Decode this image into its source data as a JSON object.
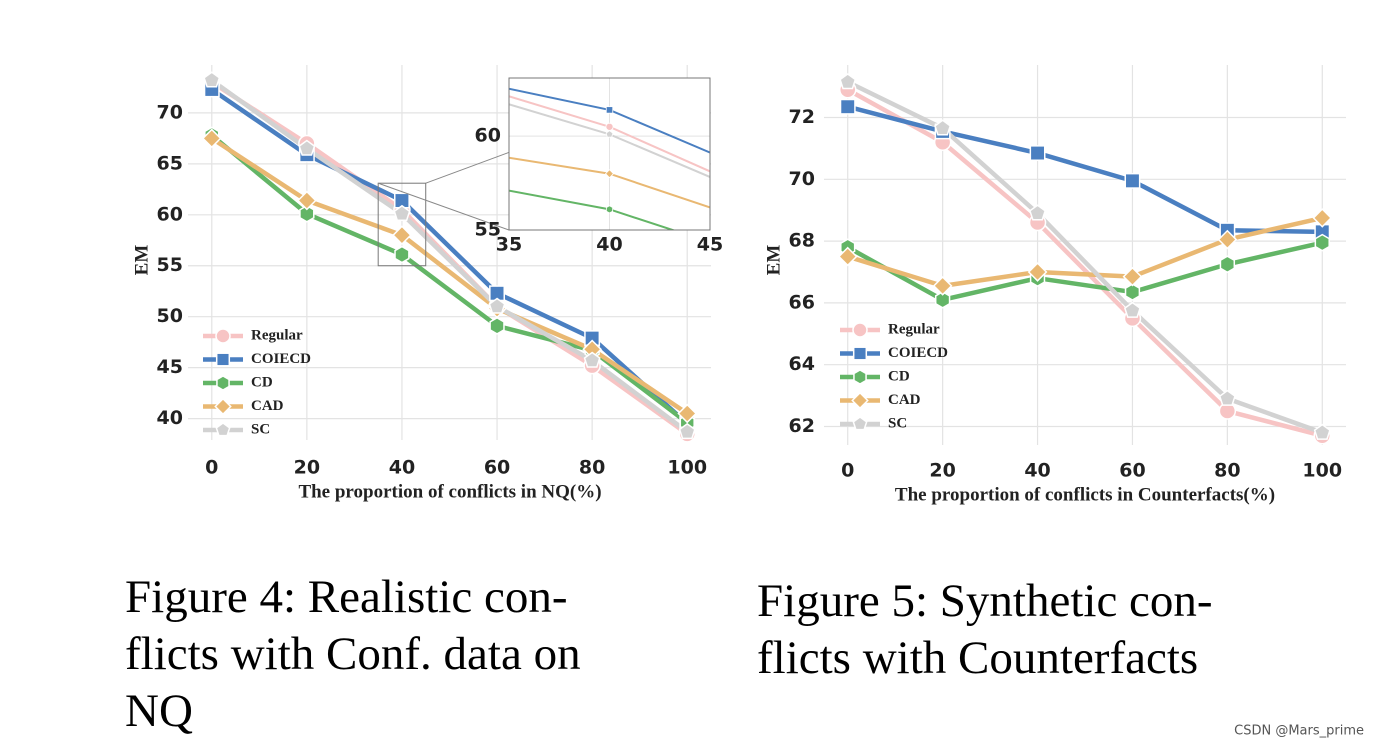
{
  "chart_data": [
    {
      "type": "line",
      "caption": [
        "Figure 4:  Realistic con-",
        "flicts with Conf. data on",
        "NQ"
      ],
      "x_label": "The proportion of conflicts in NQ(%)",
      "y_label": "EM",
      "x": [
        0,
        20,
        40,
        60,
        80,
        100
      ],
      "xlim": [
        -5,
        105
      ],
      "ylim": [
        37.9,
        74.7
      ],
      "xticks": [
        0,
        20,
        40,
        60,
        80,
        100
      ],
      "yticks": [
        40,
        45,
        50,
        55,
        60,
        65,
        70
      ],
      "grid": true,
      "legend": "lower left",
      "series": [
        {
          "name": "Regular",
          "color": "#f7c4c4",
          "marker": "circle",
          "values": [
            73.0,
            67.0,
            60.5,
            51.0,
            45.2,
            38.5
          ]
        },
        {
          "name": "COIECD",
          "color": "#4a7fc1",
          "marker": "square",
          "values": [
            72.3,
            65.9,
            61.4,
            52.3,
            47.9,
            39.5
          ]
        },
        {
          "name": "CD",
          "color": "#63b566",
          "marker": "hexagon",
          "values": [
            67.8,
            60.1,
            56.1,
            49.1,
            46.7,
            39.6
          ]
        },
        {
          "name": "CAD",
          "color": "#e9b872",
          "marker": "diamond",
          "values": [
            67.5,
            61.4,
            58.0,
            50.8,
            46.8,
            40.5
          ]
        },
        {
          "name": "SC",
          "color": "#d2d2d2",
          "marker": "pentagon",
          "values": [
            73.2,
            66.5,
            60.1,
            51.0,
            45.7,
            38.7
          ]
        }
      ],
      "inset": {
        "xlim": [
          35,
          45
        ],
        "ylim": [
          55,
          63.1
        ],
        "xticks": [
          35,
          40,
          45
        ],
        "yticks": [
          55,
          60
        ]
      }
    },
    {
      "type": "line",
      "caption": [
        "Figure 5:  Synthetic con-",
        "flicts with Counterfacts"
      ],
      "x_label": "The proportion of conflicts in Counterfacts(%)",
      "y_label": "EM",
      "x": [
        0,
        20,
        40,
        60,
        80,
        100
      ],
      "xlim": [
        -5,
        105
      ],
      "ylim": [
        61.4,
        73.7
      ],
      "xticks": [
        0,
        20,
        40,
        60,
        80,
        100
      ],
      "yticks": [
        62,
        64,
        66,
        68,
        70,
        72
      ],
      "grid": true,
      "legend": "lower left",
      "series": [
        {
          "name": "Regular",
          "color": "#f7c4c4",
          "marker": "circle",
          "values": [
            72.9,
            71.2,
            68.6,
            65.5,
            62.5,
            61.7
          ]
        },
        {
          "name": "COIECD",
          "color": "#4a7fc1",
          "marker": "square",
          "values": [
            72.35,
            71.55,
            70.85,
            69.95,
            68.35,
            68.3
          ]
        },
        {
          "name": "CD",
          "color": "#63b566",
          "marker": "hexagon",
          "values": [
            67.8,
            66.1,
            66.8,
            66.35,
            67.25,
            67.95
          ]
        },
        {
          "name": "CAD",
          "color": "#e9b872",
          "marker": "diamond",
          "values": [
            67.5,
            66.55,
            67.0,
            66.85,
            68.05,
            68.75
          ]
        },
        {
          "name": "SC",
          "color": "#d2d2d2",
          "marker": "pentagon",
          "values": [
            73.15,
            71.65,
            68.9,
            65.75,
            62.9,
            61.8
          ]
        }
      ]
    }
  ],
  "watermark": "CSDN @Mars_prime"
}
